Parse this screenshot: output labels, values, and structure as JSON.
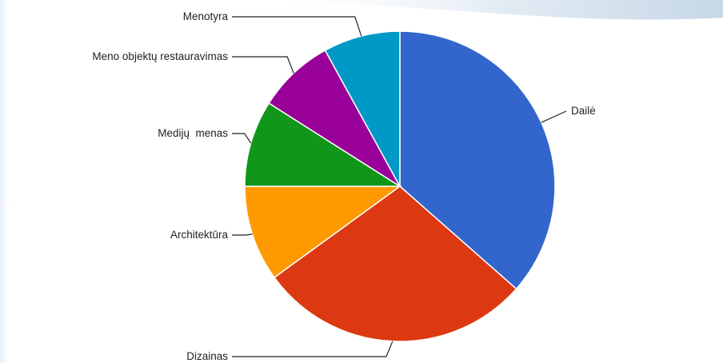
{
  "chart_data": {
    "type": "pie",
    "title": "",
    "slices": [
      {
        "label": "Dailė",
        "value": 36.5,
        "color": "#3366cc"
      },
      {
        "label": "Dizainas",
        "value": 28.5,
        "color": "#dc3912"
      },
      {
        "label": "Architektūra",
        "value": 10.0,
        "color": "#ff9900"
      },
      {
        "label": "Medijų  menas",
        "value": 9.0,
        "color": "#109618"
      },
      {
        "label": "Meno objektų restauravimas",
        "value": 8.0,
        "color": "#990099"
      },
      {
        "label": "Menotyra",
        "value": 8.0,
        "color": "#0099c6"
      }
    ],
    "start_angle_deg": 0,
    "direction": "clockwise",
    "legend": "none"
  }
}
